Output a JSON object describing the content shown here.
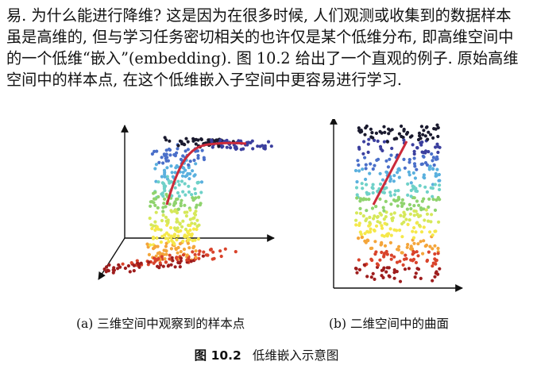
{
  "paragraph": {
    "lines": [
      "易. 为什么能进行降维? 这是因为在很多时候, 人们观测或收集到的数据样本",
      "虽是高维的, 但与学习任务密切相关的也许仅是某个低维分布, 即高维空间中",
      "的一个低维“嵌入”(embedding). 图 10.2 给出了一个直观的例子. 原始高维",
      "空间中的样本点, 在这个低维嵌入子空间中更容易进行学习."
    ]
  },
  "figure": {
    "label": "图 10.2",
    "title": "低维嵌入示意图",
    "subfigures": [
      {
        "caption": "(a) 三维空间中观察到的样本点"
      },
      {
        "caption": "(b) 二维空间中的曲面"
      }
    ],
    "palette": [
      "#1a1a2e",
      "#3b3f9e",
      "#4a6fc9",
      "#5ab0de",
      "#6fd1c8",
      "#8fd36e",
      "#d6e85a",
      "#f5e84a",
      "#f4a53a",
      "#d9432b",
      "#9e1d1d"
    ],
    "curve_color": "#cc2a3a"
  }
}
